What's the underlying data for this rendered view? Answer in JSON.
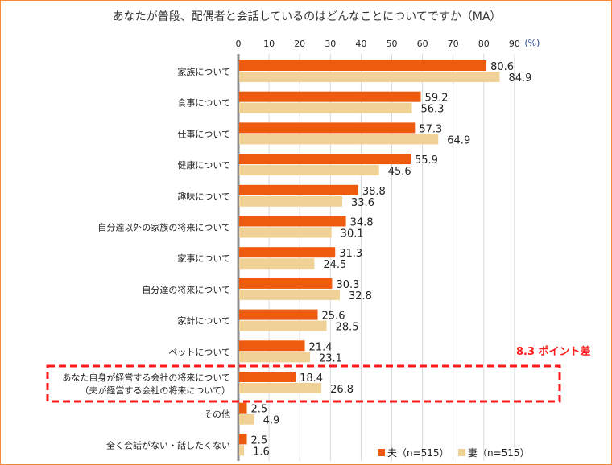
{
  "chart_data": {
    "type": "bar",
    "orientation": "horizontal",
    "title": "あなたが普段、配偶者と会話しているのはどんなことについてですか（MA）",
    "unit_label": "(%)",
    "xlim": [
      0,
      90
    ],
    "ticks": [
      0,
      10,
      20,
      30,
      40,
      50,
      60,
      70,
      80,
      90
    ],
    "grid": true,
    "legend_position": "bottom-right",
    "categories": [
      [
        "家族について"
      ],
      [
        "食事について"
      ],
      [
        "仕事について"
      ],
      [
        "健康について"
      ],
      [
        "趣味について"
      ],
      [
        "自分達以外の家族の将来について"
      ],
      [
        "家事について"
      ],
      [
        "自分達の将来について"
      ],
      [
        "家計について"
      ],
      [
        "ペットについて"
      ],
      [
        "あなた自身が経営する会社の将来について",
        "（夫が経営する会社の将来について）"
      ],
      [
        "その他"
      ],
      [
        "全く会話がない・話したくない"
      ]
    ],
    "series": [
      {
        "name": "夫（n=515）",
        "color": "#ee5a0e",
        "values": [
          80.6,
          59.2,
          57.3,
          55.9,
          38.8,
          34.8,
          31.3,
          30.3,
          25.6,
          21.4,
          18.4,
          2.5,
          2.5
        ]
      },
      {
        "name": "妻（n=515）",
        "color": "#f0d296",
        "values": [
          84.9,
          56.3,
          64.9,
          45.6,
          33.6,
          30.1,
          24.5,
          32.8,
          28.5,
          23.1,
          26.8,
          4.9,
          1.6
        ]
      }
    ],
    "annotation": {
      "text": "8.3 ポイント差",
      "color": "#ff1a1a",
      "highlight_index": 10
    }
  }
}
